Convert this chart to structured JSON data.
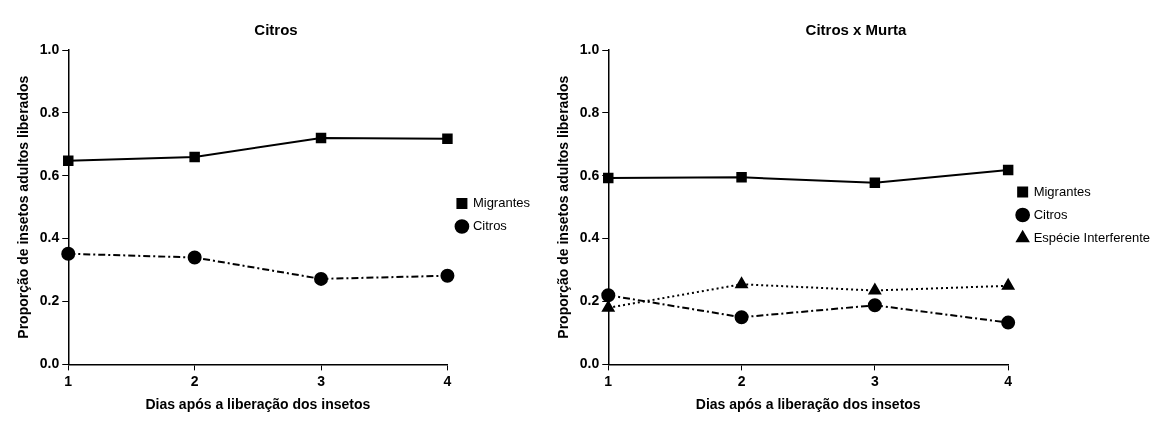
{
  "chart_data": [
    {
      "type": "line",
      "title": "Citros",
      "xlabel": "Dias após a liberação dos insetos",
      "ylabel": "Proporção de insetos adultos liberados",
      "x": [
        1,
        2,
        3,
        4
      ],
      "xlim": [
        1,
        4
      ],
      "xticks": [
        1,
        2,
        3,
        4
      ],
      "ylim": [
        0,
        1
      ],
      "yticks": [
        {
          "value": 0,
          "label": "0.0"
        },
        {
          "value": 0.2,
          "label": "0.2"
        },
        {
          "value": 0.4,
          "label": "0.4"
        },
        {
          "value": 0.6,
          "label": "0.6"
        },
        {
          "value": 0.8,
          "label": "0.8"
        },
        {
          "value": 1,
          "label": "1.0"
        }
      ],
      "grid": false,
      "legend": "right",
      "series": [
        {
          "name": "Migrantes",
          "color": "#000000",
          "values": [
            0.648,
            0.66,
            0.72,
            0.718
          ],
          "marker": "square",
          "line_style": "solid"
        },
        {
          "name": "Citros",
          "color": "#000000",
          "values": [
            0.352,
            0.34,
            0.272,
            0.282
          ],
          "marker": "circle",
          "line_style": "dashed"
        }
      ]
    },
    {
      "type": "line",
      "title": "Citros x Murta",
      "xlabel": "Dias após a liberação dos insetos",
      "ylabel": "Proporção de insetos adultos liberados",
      "x": [
        1,
        2,
        3,
        4
      ],
      "xlim": [
        1,
        4
      ],
      "xticks": [
        1,
        2,
        3,
        4
      ],
      "ylim": [
        0,
        1
      ],
      "yticks": [
        {
          "value": 0,
          "label": "0.0"
        },
        {
          "value": 0.2,
          "label": "0.2"
        },
        {
          "value": 0.4,
          "label": "0.4"
        },
        {
          "value": 0.6,
          "label": "0.6"
        },
        {
          "value": 0.8,
          "label": "0.8"
        },
        {
          "value": 1,
          "label": "1.0"
        }
      ],
      "grid": false,
      "legend": "right",
      "series": [
        {
          "name": "Migrantes",
          "color": "#000000",
          "values": [
            0.593,
            0.595,
            0.578,
            0.618
          ],
          "marker": "square",
          "line_style": "solid"
        },
        {
          "name": "Citros",
          "color": "#000000",
          "values": [
            0.22,
            0.15,
            0.188,
            0.133
          ],
          "marker": "circle",
          "line_style": "dashed"
        },
        {
          "name": "Espécie Interferente",
          "color": "#000000",
          "values": [
            0.18,
            0.255,
            0.235,
            0.25
          ],
          "marker": "triangle",
          "line_style": "dotted"
        }
      ]
    }
  ]
}
